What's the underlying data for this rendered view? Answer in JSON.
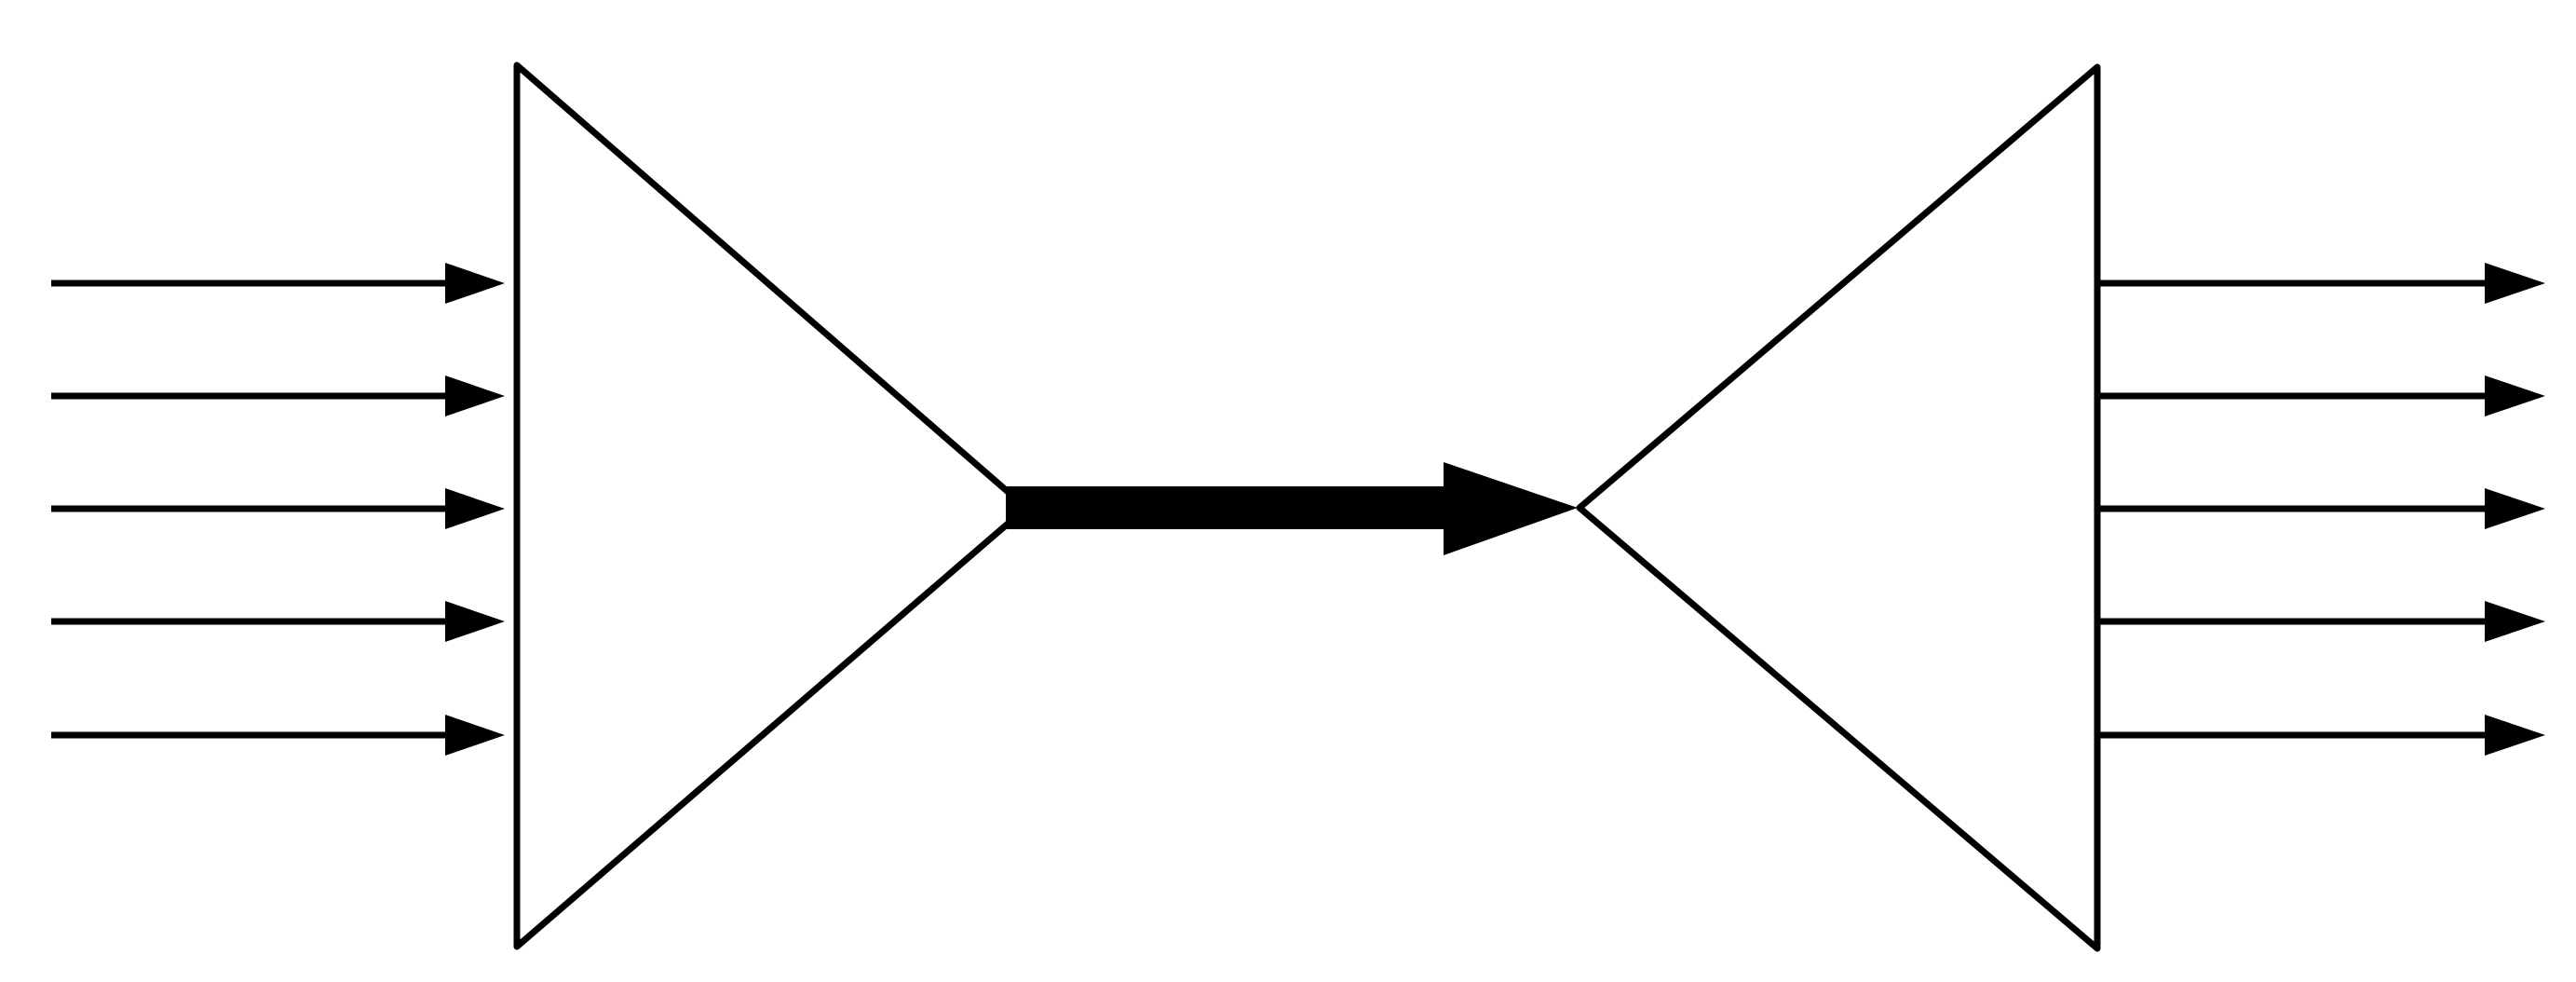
{
  "diagram": {
    "input_lines": 5,
    "output_lines": 5,
    "stroke_color": "#000000",
    "fill_color": "#ffffff",
    "background_color": "#ffffff",
    "shapes": [
      "left-triangle",
      "center-thick-arrow",
      "right-triangle"
    ]
  }
}
